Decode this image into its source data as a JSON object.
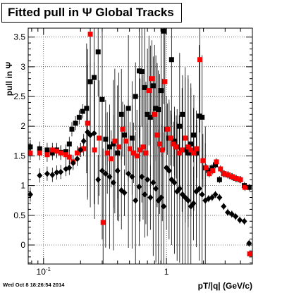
{
  "timestamp": "Wed Oct  8 18:26:54 2014",
  "chart_data": {
    "type": "scatter",
    "title": "Fitted pull in Ψ   Global Tracks",
    "xlabel": "pT/|q| (GeV/c)",
    "ylabel": "pull in Ψ",
    "xscale": "log",
    "xlim": [
      0.075,
      5.0
    ],
    "ylim": [
      -0.32,
      3.65
    ],
    "x_ticks": [
      {
        "v": 0.1,
        "label": "10^-1"
      },
      {
        "v": 1,
        "label": "1"
      }
    ],
    "y_ticks": [
      0,
      0.5,
      1,
      1.5,
      2,
      2.5,
      3,
      3.5
    ],
    "grid": true,
    "colors": {
      "black": "#000000",
      "red": "#ff0000"
    },
    "series": [
      {
        "marker": "square",
        "color": "#000000",
        "points": [
          [
            0.078,
            1.65
          ],
          [
            0.093,
            1.62
          ],
          [
            0.107,
            1.6
          ],
          [
            0.118,
            1.55
          ],
          [
            0.128,
            1.6
          ],
          [
            0.138,
            1.56
          ],
          [
            0.152,
            1.57
          ],
          [
            0.162,
            1.7
          ],
          [
            0.17,
            1.95
          ],
          [
            0.182,
            2.05
          ],
          [
            0.195,
            2.15
          ],
          [
            0.208,
            2.25
          ],
          [
            0.224,
            2.3
          ],
          [
            0.24,
            2.75
          ],
          [
            0.258,
            2.82
          ],
          [
            0.278,
            3.25
          ],
          [
            0.3,
            2.45
          ],
          [
            0.32,
            1.78
          ],
          [
            0.345,
            1.65
          ],
          [
            0.37,
            1.7
          ],
          [
            0.4,
            1.55
          ],
          [
            0.43,
            2.2
          ],
          [
            0.455,
            1.85
          ],
          [
            0.49,
            2.3
          ],
          [
            0.525,
            1.8
          ],
          [
            0.56,
            2.5
          ],
          [
            0.6,
            2.93
          ],
          [
            0.63,
            2.92
          ],
          [
            0.665,
            2.65
          ],
          [
            0.7,
            2.2
          ],
          [
            0.74,
            2.15
          ],
          [
            0.78,
            2.68
          ],
          [
            0.82,
            2.3
          ],
          [
            0.86,
            2.28
          ],
          [
            0.905,
            2.6
          ],
          [
            0.95,
            3.6
          ],
          [
            1.0,
            1.95
          ],
          [
            1.05,
            1.8
          ],
          [
            1.1,
            3.12
          ],
          [
            1.16,
            1.75
          ],
          [
            1.22,
            1.65
          ],
          [
            1.28,
            2.0
          ],
          [
            1.35,
            2.2
          ],
          [
            1.42,
            1.6
          ],
          [
            1.5,
            1.55
          ],
          [
            1.58,
            1.7
          ],
          [
            1.66,
            1.85
          ],
          [
            1.75,
            1.55
          ],
          [
            1.85,
            2.17
          ],
          [
            1.95,
            2.15
          ],
          [
            2.07,
            1.3
          ],
          [
            2.2,
            1.25
          ],
          [
            2.35,
            1.3
          ],
          [
            2.5,
            1.35
          ],
          [
            2.7,
            1.1
          ],
          [
            2.92,
            1.2
          ],
          [
            3.15,
            1.18
          ],
          [
            3.4,
            1.15
          ],
          [
            3.65,
            1.12
          ],
          [
            3.95,
            1.1
          ],
          [
            4.3,
            1.0
          ],
          [
            4.7,
            0.97
          ]
        ]
      },
      {
        "marker": "square",
        "color": "#ff0000",
        "points": [
          [
            0.078,
            1.55
          ],
          [
            0.093,
            1.55
          ],
          [
            0.107,
            1.52
          ],
          [
            0.118,
            1.6
          ],
          [
            0.128,
            1.58
          ],
          [
            0.138,
            1.55
          ],
          [
            0.152,
            1.52
          ],
          [
            0.162,
            1.48
          ],
          [
            0.174,
            1.4
          ],
          [
            0.188,
            1.55
          ],
          [
            0.2,
            1.6
          ],
          [
            0.212,
            1.62
          ],
          [
            0.228,
            2.05
          ],
          [
            0.24,
            3.55
          ],
          [
            0.26,
            1.6
          ],
          [
            0.283,
            1.8
          ],
          [
            0.305,
            0.38
          ],
          [
            0.33,
            1.55
          ],
          [
            0.355,
            1.45
          ],
          [
            0.38,
            1.75
          ],
          [
            0.41,
            1.65
          ],
          [
            0.44,
            1.95
          ],
          [
            0.47,
            1.75
          ],
          [
            0.505,
            1.62
          ],
          [
            0.54,
            1.55
          ],
          [
            0.575,
            1.5
          ],
          [
            0.61,
            1.6
          ],
          [
            0.645,
            1.65
          ],
          [
            0.68,
            1.55
          ],
          [
            0.72,
            2.6
          ],
          [
            0.76,
            2.8
          ],
          [
            0.8,
            2.2
          ],
          [
            0.84,
            1.85
          ],
          [
            0.88,
            1.7
          ],
          [
            0.925,
            1.6
          ],
          [
            0.97,
            2.75
          ],
          [
            1.02,
            1.95
          ],
          [
            1.08,
            1.8
          ],
          [
            1.14,
            1.7
          ],
          [
            1.2,
            1.65
          ],
          [
            1.27,
            1.55
          ],
          [
            1.34,
            1.6
          ],
          [
            1.42,
            1.8
          ],
          [
            1.5,
            1.65
          ],
          [
            1.58,
            1.6
          ],
          [
            1.67,
            1.55
          ],
          [
            1.76,
            1.62
          ],
          [
            1.87,
            3.12
          ],
          [
            1.98,
            1.42
          ],
          [
            2.1,
            1.3
          ],
          [
            2.23,
            1.2
          ],
          [
            2.38,
            1.25
          ],
          [
            2.55,
            1.4
          ],
          [
            2.75,
            1.28
          ],
          [
            2.95,
            1.2
          ],
          [
            3.18,
            1.18
          ],
          [
            3.43,
            1.15
          ],
          [
            3.7,
            1.12
          ],
          [
            4.0,
            1.1
          ],
          [
            4.35,
            0.97
          ],
          [
            4.75,
            -0.15
          ]
        ]
      },
      {
        "marker": "diamond",
        "color": "#000000",
        "points": [
          [
            0.078,
            0.85
          ],
          [
            0.093,
            1.17
          ],
          [
            0.107,
            1.2
          ],
          [
            0.118,
            1.18
          ],
          [
            0.128,
            1.22
          ],
          [
            0.138,
            1.23
          ],
          [
            0.152,
            1.28
          ],
          [
            0.162,
            1.3
          ],
          [
            0.174,
            1.38
          ],
          [
            0.188,
            1.45
          ],
          [
            0.2,
            1.6
          ],
          [
            0.212,
            1.75
          ],
          [
            0.228,
            1.9
          ],
          [
            0.24,
            1.85
          ],
          [
            0.258,
            1.88
          ],
          [
            0.278,
            1.1
          ],
          [
            0.3,
            1.25
          ],
          [
            0.32,
            1.2
          ],
          [
            0.345,
            1.15
          ],
          [
            0.37,
            1.05
          ],
          [
            0.4,
            1.25
          ],
          [
            0.43,
            0.92
          ],
          [
            0.455,
            0.88
          ],
          [
            0.49,
            1.2
          ],
          [
            0.525,
            1.15
          ],
          [
            0.56,
            0.75
          ],
          [
            0.6,
            0.98
          ],
          [
            0.63,
            1.15
          ],
          [
            0.665,
            0.85
          ],
          [
            0.7,
            1.1
          ],
          [
            0.74,
            0.8
          ],
          [
            0.78,
            1.05
          ],
          [
            0.82,
            0.95
          ],
          [
            0.86,
            0.75
          ],
          [
            0.905,
            0.8
          ],
          [
            0.95,
            0.65
          ],
          [
            1.0,
            1.3
          ],
          [
            1.05,
            1.25
          ],
          [
            1.1,
            1.1
          ],
          [
            1.16,
            1.05
          ],
          [
            1.22,
            0.9
          ],
          [
            1.28,
            0.95
          ],
          [
            1.35,
            0.85
          ],
          [
            1.42,
            0.8
          ],
          [
            1.5,
            0.75
          ],
          [
            1.58,
            0.65
          ],
          [
            1.66,
            0.7
          ],
          [
            1.75,
            0.9
          ],
          [
            1.85,
            0.95
          ],
          [
            1.95,
            0.85
          ],
          [
            2.07,
            0.75
          ],
          [
            2.2,
            0.78
          ],
          [
            2.35,
            0.8
          ],
          [
            2.5,
            0.85
          ],
          [
            2.7,
            0.8
          ],
          [
            2.92,
            0.65
          ],
          [
            3.15,
            0.55
          ],
          [
            3.4,
            0.52
          ],
          [
            3.65,
            0.48
          ],
          [
            3.95,
            0.42
          ],
          [
            4.3,
            0.4
          ],
          [
            4.7,
            0.03
          ]
        ]
      }
    ]
  }
}
